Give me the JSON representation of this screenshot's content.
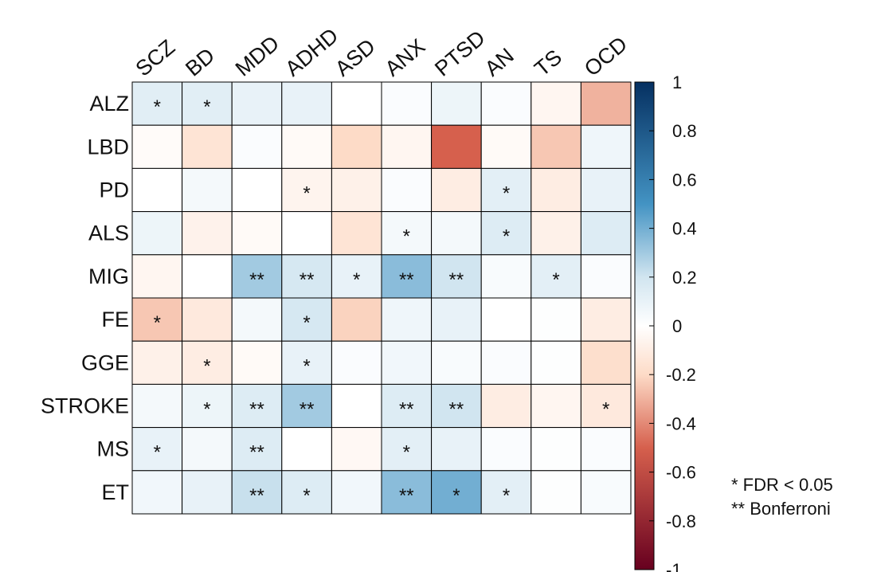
{
  "chart_data": {
    "type": "heatmap",
    "columns": [
      "SCZ",
      "BD",
      "MDD",
      "ADHD",
      "ASD",
      "ANX",
      "PTSD",
      "AN",
      "TS",
      "OCD"
    ],
    "rows": [
      "ALZ",
      "LBD",
      "PD",
      "ALS",
      "MIG",
      "FE",
      "GGE",
      "STROKE",
      "MS",
      "ET"
    ],
    "values": [
      [
        0.13,
        0.13,
        0.1,
        0.1,
        0.0,
        0.02,
        0.08,
        0.02,
        -0.05,
        -0.3
      ],
      [
        -0.02,
        -0.15,
        0.02,
        -0.03,
        -0.2,
        -0.05,
        -0.5,
        -0.03,
        -0.25,
        0.07
      ],
      [
        0.0,
        0.05,
        0.0,
        -0.06,
        -0.08,
        0.02,
        -0.1,
        0.12,
        -0.1,
        0.1
      ],
      [
        0.08,
        -0.07,
        -0.03,
        0.0,
        -0.15,
        0.05,
        0.05,
        0.15,
        -0.08,
        0.15
      ],
      [
        -0.05,
        0.0,
        0.3,
        0.18,
        0.1,
        0.35,
        0.2,
        0.03,
        0.12,
        0.02
      ],
      [
        -0.25,
        -0.12,
        0.05,
        0.18,
        -0.22,
        0.07,
        0.1,
        0.0,
        0.01,
        -0.1
      ],
      [
        -0.08,
        -0.1,
        -0.03,
        0.1,
        0.02,
        0.06,
        0.03,
        0.02,
        0.01,
        -0.18
      ],
      [
        0.05,
        0.08,
        0.15,
        0.3,
        0.0,
        0.15,
        0.2,
        -0.1,
        -0.05,
        -0.12
      ],
      [
        0.1,
        0.05,
        0.15,
        0.0,
        -0.04,
        0.12,
        0.1,
        0.02,
        0.01,
        0.02
      ],
      [
        0.06,
        0.1,
        0.22,
        0.15,
        0.06,
        0.35,
        0.4,
        0.12,
        0.01,
        0.03
      ]
    ],
    "significance": [
      [
        "*",
        "*",
        "",
        "",
        "",
        "",
        "",
        "",
        "",
        ""
      ],
      [
        "",
        "",
        "",
        "",
        "",
        "",
        "",
        "",
        "",
        ""
      ],
      [
        "",
        "",
        "",
        "*",
        "",
        "",
        "",
        "*",
        "",
        ""
      ],
      [
        "",
        "",
        "",
        "",
        "",
        "*",
        "",
        "*",
        "",
        ""
      ],
      [
        "",
        "",
        "**",
        "**",
        "*",
        "**",
        "**",
        "",
        "*",
        ""
      ],
      [
        "*",
        "",
        "",
        "*",
        "",
        "",
        "",
        "",
        "",
        ""
      ],
      [
        "",
        "*",
        "",
        "*",
        "",
        "",
        "",
        "",
        "",
        ""
      ],
      [
        "",
        "*",
        "**",
        "**",
        "",
        "**",
        "**",
        "",
        "",
        "*"
      ],
      [
        "*",
        "",
        "**",
        "",
        "",
        "*",
        "",
        "",
        "",
        ""
      ],
      [
        "",
        "",
        "**",
        "*",
        "",
        "**",
        "*",
        "*",
        "",
        ""
      ]
    ],
    "colorbar": {
      "range": [
        -1,
        1
      ],
      "ticks": [
        "1",
        "0.8",
        "0.6",
        "0.4",
        "0.2",
        "0",
        "-0.2",
        "-0.4",
        "-0.6",
        "-0.8",
        "-1"
      ],
      "colors": {
        "neg_end": "#67001F",
        "neg_mid": "#D6604D",
        "neg_light": "#FDDBC7",
        "zero": "#FFFFFF",
        "pos_light": "#D1E5F0",
        "pos_mid": "#4393C3",
        "pos_end": "#053061"
      }
    },
    "grid": true
  },
  "legend_notes": [
    "* FDR < 0.05",
    "** Bonferroni"
  ]
}
